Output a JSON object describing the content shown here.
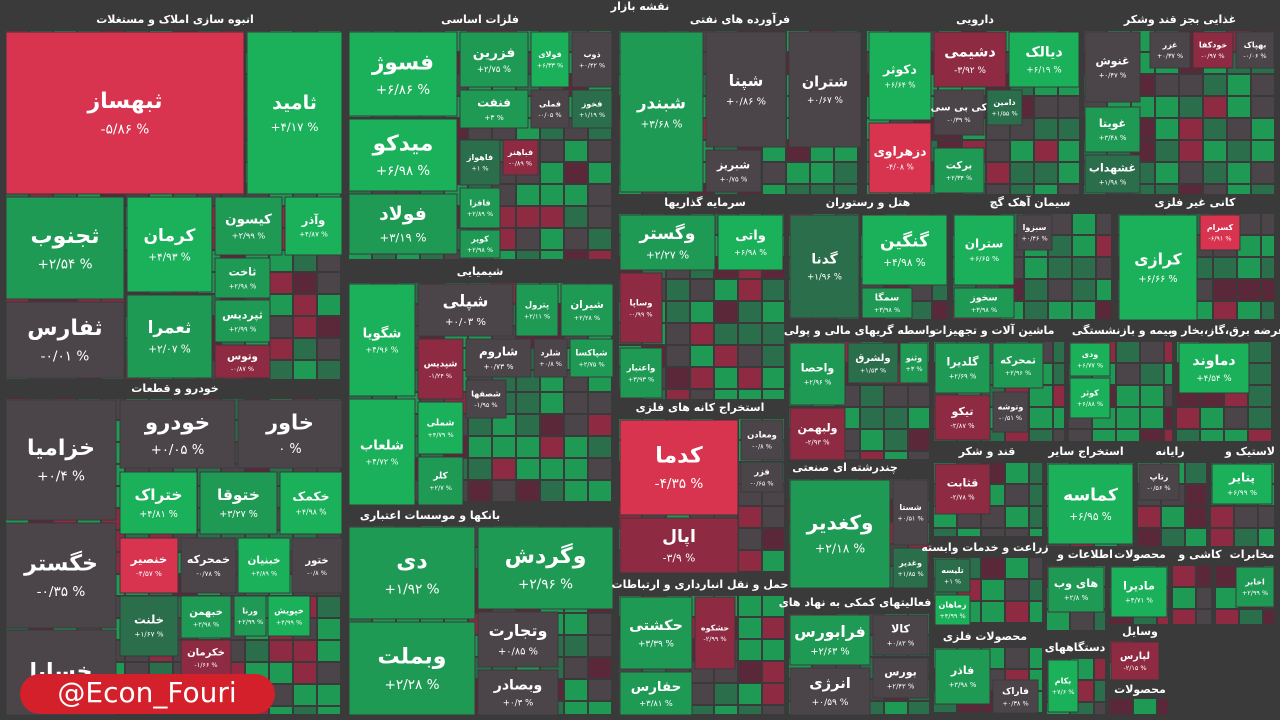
{
  "title": "نقشه بازار",
  "watermark": "@Econ_Fouri",
  "sectors": [
    {
      "name": "انبوه سازی املاک و مستغلات",
      "tiles": [
        {
          "name": "ثبهساز",
          "change": "-۵/۸۶ %",
          "color": "#d8334f"
        },
        {
          "name": "ثامید",
          "change": "+۴/۱۷ %",
          "color": "#1bb15a"
        },
        {
          "name": "ثجنوب",
          "change": "+۲/۵۴ %",
          "color": "#1f9a55"
        },
        {
          "name": "کرمان",
          "change": "+۴/۹۳ %",
          "color": "#1bb15a"
        },
        {
          "name": "کیسون",
          "change": "+۲/۹۹ %",
          "color": "#1f9a55"
        },
        {
          "name": "وآذر",
          "change": "+۴/۸۷ %",
          "color": "#1bb15a"
        },
        {
          "name": "ثاخت",
          "change": "+۲/۹۸ %",
          "color": "#1f9a55"
        },
        {
          "name": "ثفارس",
          "change": "-۰/۰۱ %",
          "color": "#4b4549"
        },
        {
          "name": "ثعمرا",
          "change": "+۲/۰۷ %",
          "color": "#1f9a55"
        },
        {
          "name": "ثپردیس",
          "change": "+۲/۹۹ %",
          "color": "#1f9a55"
        },
        {
          "name": "وتوس",
          "change": "-۰/۸۷ %",
          "color": "#8e2a42"
        }
      ]
    },
    {
      "name": "خودرو و قطعات",
      "tiles": [
        {
          "name": "خزامیا",
          "change": "+۰/۴ %",
          "color": "#4b4549"
        },
        {
          "name": "خاور",
          "change": "۰ %",
          "color": "#4b4549"
        },
        {
          "name": "خودرو",
          "change": "+۰/۰۵ %",
          "color": "#4b4549"
        },
        {
          "name": "خگستر",
          "change": "-۰/۳۵ %",
          "color": "#4b4549"
        },
        {
          "name": "خساپا",
          "color": "#4b4549"
        },
        {
          "name": "ختراک",
          "change": "+۴/۸۱ %",
          "color": "#1bb15a"
        },
        {
          "name": "ختوقا",
          "change": "+۳/۲۷ %",
          "color": "#1f9a55"
        },
        {
          "name": "خکمک",
          "change": "+۴/۹۸ %",
          "color": "#1bb15a"
        },
        {
          "name": "خنصیر",
          "change": "-۴/۵۷ %",
          "color": "#d8334f"
        },
        {
          "name": "خمحرکه",
          "change": "-۰/۷۸ %",
          "color": "#4b4549"
        },
        {
          "name": "خبنیان",
          "change": "+۴/۸۹ %",
          "color": "#1bb15a"
        },
        {
          "name": "ختور",
          "change": "-۰/۸ %",
          "color": "#4b4549"
        },
        {
          "name": "خلنت",
          "change": "+۱/۶۷ %",
          "color": "#2b6e4b"
        },
        {
          "name": "خبهمن",
          "change": "+۲/۹۸ %",
          "color": "#1f9a55"
        },
        {
          "name": "ورنا",
          "change": "+۲/۹۹ %",
          "color": "#1f9a55"
        },
        {
          "name": "خپویش",
          "change": "+۴/۹۹ %",
          "color": "#1bb15a"
        },
        {
          "name": "خکرمان",
          "change": "-۱/۶۶ %",
          "color": "#8e2a42"
        }
      ]
    },
    {
      "name": "فلزات اساسی",
      "tiles": [
        {
          "name": "فسوژ",
          "change": "+۶/۸۶ %",
          "color": "#1bb15a"
        },
        {
          "name": "میدکو",
          "change": "+۶/۹۸ %",
          "color": "#1bb15a"
        },
        {
          "name": "فولاد",
          "change": "+۳/۱۹ %",
          "color": "#1f9a55"
        },
        {
          "name": "فزرین",
          "change": "+۲/۷۵ %",
          "color": "#1f9a55"
        },
        {
          "name": "فولای",
          "change": "+۶/۳۳ %",
          "color": "#1bb15a"
        },
        {
          "name": "ذوب",
          "change": "+۰/۴۲ %",
          "color": "#4b4549"
        },
        {
          "name": "فنفت",
          "change": "+۳ %",
          "color": "#1f9a55"
        },
        {
          "name": "فملی",
          "change": "-۰/۰۵ %",
          "color": "#4b4549"
        },
        {
          "name": "فخوز",
          "change": "+۱/۱۹ %",
          "color": "#2b6e4b"
        },
        {
          "name": "فاهواز",
          "change": "+۱ %",
          "color": "#2b6e4b"
        },
        {
          "name": "فباهنر",
          "change": "-۰/۸۹ %",
          "color": "#8e2a42"
        },
        {
          "name": "فافزا",
          "change": "+۲/۸۹ %",
          "color": "#1f9a55"
        },
        {
          "name": "کویر",
          "change": "+۲/۹۸ %",
          "color": "#1f9a55"
        }
      ]
    },
    {
      "name": "شیمیایی",
      "tiles": [
        {
          "name": "شگویا",
          "change": "+۴/۹۶ %",
          "color": "#1bb15a"
        },
        {
          "name": "شلعاب",
          "change": "+۴/۷۲ %",
          "color": "#1bb15a"
        },
        {
          "name": "شپلی",
          "change": "+۰/۰۳ %",
          "color": "#4b4549"
        },
        {
          "name": "پترول",
          "change": "+۲/۱۱ %",
          "color": "#1f9a55"
        },
        {
          "name": "شیران",
          "change": "+۲/۲۸ %",
          "color": "#1f9a55"
        },
        {
          "name": "شپدیس",
          "change": "-۱/۲۴ %",
          "color": "#8e2a42"
        },
        {
          "name": "شاروم",
          "change": "+۰/۷۳ %",
          "color": "#4b4549"
        },
        {
          "name": "شلرد",
          "change": "+۰/۸ %",
          "color": "#4b4549"
        },
        {
          "name": "شپاکسا",
          "change": "+۲/۷۵ %",
          "color": "#1f9a55"
        },
        {
          "name": "شصفها",
          "change": "-۱/۹۵ %",
          "color": "#4b4549"
        },
        {
          "name": "شملی",
          "change": "+۴/۷۹ %",
          "color": "#1bb15a"
        },
        {
          "name": "کلر",
          "change": "+۲/۷ %",
          "color": "#1f9a55"
        }
      ]
    },
    {
      "name": "بانکها و موسسات اعتباری",
      "tiles": [
        {
          "name": "دی",
          "change": "+۱/۹۲ %",
          "color": "#1f9a55"
        },
        {
          "name": "وبملت",
          "change": "+۲/۲۸ %",
          "color": "#1f9a55"
        },
        {
          "name": "وگردش",
          "change": "+۲/۹۶ %",
          "color": "#1f9a55"
        },
        {
          "name": "وتجارت",
          "change": "+۰/۸۵ %",
          "color": "#4b4549"
        },
        {
          "name": "وبصادر",
          "change": "+۰/۳ %",
          "color": "#4b4549"
        }
      ]
    },
    {
      "name": "فرآورده های نفتی",
      "tiles": [
        {
          "name": "شبندر",
          "change": "+۳/۶۸ %",
          "color": "#1f9a55"
        },
        {
          "name": "شپنا",
          "change": "+۰/۸۶ %",
          "color": "#4b4549"
        },
        {
          "name": "شتران",
          "change": "+۰/۶۷ %",
          "color": "#4b4549"
        },
        {
          "name": "شبریز",
          "change": "+۰/۷۵ %",
          "color": "#4b4549"
        }
      ]
    },
    {
      "name": "دارویی",
      "tiles": [
        {
          "name": "دکوثر",
          "change": "+۶/۶۴ %",
          "color": "#1bb15a"
        },
        {
          "name": "دزهراوی",
          "change": "-۴/۰۸ %",
          "color": "#d8334f"
        },
        {
          "name": "دشیمی",
          "change": "-۳/۹۲ %",
          "color": "#8e2a42"
        },
        {
          "name": "دیالک",
          "change": "+۶/۱۹ %",
          "color": "#1bb15a"
        },
        {
          "name": "کی بی سی",
          "change": "-۰/۳۹ %",
          "color": "#4b4549"
        },
        {
          "name": "دامین",
          "change": "+۱/۵۵ %",
          "color": "#2b6e4b"
        },
        {
          "name": "برکت",
          "change": "+۲/۳۴ %",
          "color": "#1f9a55"
        }
      ]
    },
    {
      "name": "غذایی بجز قند وشکر",
      "tiles": [
        {
          "name": "بهپاک",
          "change": "-۰/۰۶ %",
          "color": "#4b4549"
        },
        {
          "name": "خودکفا",
          "change": "-۰/۹۷ %",
          "color": "#8e2a42"
        },
        {
          "name": "غزر",
          "change": "+۰/۳۷ %",
          "color": "#4b4549"
        },
        {
          "name": "غنوش",
          "change": "+۰/۴۷ %",
          "color": "#4b4549"
        },
        {
          "name": "غویتا",
          "change": "+۳/۴۸ %",
          "color": "#1f9a55"
        },
        {
          "name": "غشهداب",
          "change": "+۱/۹۸ %",
          "color": "#2b6e4b"
        }
      ]
    },
    {
      "name": "سرمایه گذاریها",
      "tiles": [
        {
          "name": "وگستر",
          "change": "+۲/۲۷ %",
          "color": "#1f9a55"
        },
        {
          "name": "واتی",
          "change": "+۶/۹۸ %",
          "color": "#1bb15a"
        },
        {
          "name": "وساپا",
          "change": "-۰/۹۹ %",
          "color": "#8e2a42"
        },
        {
          "name": "واعتبار",
          "change": "+۳/۹۳ %",
          "color": "#1f9a55"
        }
      ]
    },
    {
      "name": "هتل و رستوران",
      "tiles": [
        {
          "name": "گنگین",
          "change": "+۴/۹۸ %",
          "color": "#1bb15a"
        },
        {
          "name": "گدنا",
          "change": "+۱/۹۶ %",
          "color": "#2b6e4b"
        },
        {
          "name": "سمگا",
          "change": "+۳/۹۸ %",
          "color": "#1f9a55"
        }
      ]
    },
    {
      "name": "سیمان آهک گچ",
      "tiles": [
        {
          "name": "ستران",
          "change": "+۶/۶۵ %",
          "color": "#1bb15a"
        },
        {
          "name": "سخوز",
          "change": "+۳/۹۸ %",
          "color": "#1f9a55"
        },
        {
          "name": "سبزوا",
          "change": "+۰/۴۶ %",
          "color": "#4b4549"
        }
      ]
    },
    {
      "name": "کانی غیر فلزی",
      "tiles": [
        {
          "name": "کرازی",
          "change": "+۶/۶۶ %",
          "color": "#1bb15a"
        },
        {
          "name": "کسرام",
          "change": "-۶/۹۱ %",
          "color": "#d8334f"
        }
      ]
    },
    {
      "name": "استخراج کانه های فلزی",
      "tiles": [
        {
          "name": "کدما",
          "change": "-۴/۳۵ %",
          "color": "#d8334f"
        },
        {
          "name": "اپال",
          "change": "-۳/۹ %",
          "color": "#8e2a42"
        },
        {
          "name": "ومعادن",
          "change": "-۰/۸ %",
          "color": "#4b4549"
        },
        {
          "name": "فزر",
          "change": "-۰/۶۵ %",
          "color": "#4b4549"
        }
      ]
    },
    {
      "name": "حمل و نقل انبارداری و ارتباطات",
      "tiles": [
        {
          "name": "حکشتی",
          "change": "+۳/۳۹ %",
          "color": "#1f9a55"
        },
        {
          "name": "حشکوه",
          "change": "-۲/۹۹ %",
          "color": "#8e2a42"
        },
        {
          "name": "حفارس",
          "change": "+۳/۸۱ %",
          "color": "#1f9a55"
        }
      ]
    },
    {
      "name": "واسطه گریهای مالی و پولی",
      "tiles": [
        {
          "name": "واحصا",
          "change": "+۲/۹۶ %",
          "color": "#1f9a55"
        },
        {
          "name": "ولشرق",
          "change": "+۱/۵۳ %",
          "color": "#2b6e4b"
        },
        {
          "name": "وثنو",
          "change": "+۳ %",
          "color": "#1f9a55"
        },
        {
          "name": "ولبهمن",
          "change": "-۲/۹۳ %",
          "color": "#8e2a42"
        }
      ]
    },
    {
      "name": "چندرشته ای صنعتی",
      "tiles": [
        {
          "name": "وکغدیر",
          "change": "+۲/۱۸ %",
          "color": "#1f9a55"
        },
        {
          "name": "شستا",
          "change": "+۰/۵۱ %",
          "color": "#4b4549"
        },
        {
          "name": "وغدیر",
          "change": "+۱/۸۵ %",
          "color": "#2b6e4b"
        }
      ]
    },
    {
      "name": "فعالیتهای کمکی به نهاد های",
      "tiles": [
        {
          "name": "فرابورس",
          "change": "+۲/۶۳ %",
          "color": "#1f9a55"
        },
        {
          "name": "انرژی",
          "change": "+۰/۵۹ %",
          "color": "#4b4549"
        },
        {
          "name": "کالا",
          "change": "+۰/۸۳ %",
          "color": "#4b4549"
        },
        {
          "name": "بورس",
          "change": "+۲/۴۳ %",
          "color": "#4b4549"
        }
      ]
    },
    {
      "name": "ماشین آلات و تجهیزات",
      "tiles": [
        {
          "name": "گلدیرا",
          "change": "+۲/۶۹ %",
          "color": "#1f9a55"
        },
        {
          "name": "تمحرکه",
          "change": "+۲/۹۶ %",
          "color": "#1f9a55"
        },
        {
          "name": "تیکو",
          "change": "-۲/۸۷ %",
          "color": "#8e2a42"
        },
        {
          "name": "وتوشه",
          "change": "-۰/۵۱ %",
          "color": "#4b4549"
        }
      ]
    },
    {
      "name": "بیمه و بازنشستگی",
      "tiles": [
        {
          "name": "ودی",
          "change": "+۶/۷۷ %",
          "color": "#1bb15a"
        },
        {
          "name": "کوثر",
          "change": "+۶/۸۸ %",
          "color": "#1bb15a"
        }
      ]
    },
    {
      "name": "عرضه برق،گاز،بخار و",
      "tiles": [
        {
          "name": "دماوند",
          "change": "+۴/۵۴ %",
          "color": "#1bb15a"
        }
      ]
    },
    {
      "name": "قند و شکر",
      "tiles": [
        {
          "name": "قثابت",
          "change": "-۲/۷۸ %",
          "color": "#8e2a42"
        }
      ]
    },
    {
      "name": "استخراج سایر",
      "tiles": [
        {
          "name": "کماسه",
          "change": "+۶/۹۵ %",
          "color": "#1bb15a"
        }
      ]
    },
    {
      "name": "رایانه",
      "tiles": [
        {
          "name": "رتاپ",
          "change": "-۰/۵۶ %",
          "color": "#4b4549"
        }
      ]
    },
    {
      "name": "لاستیک و",
      "tiles": [
        {
          "name": "پتایر",
          "change": "+۶/۹۹ %",
          "color": "#1bb15a"
        }
      ]
    },
    {
      "name": "زراعت و خدمات وابسته",
      "tiles": [
        {
          "name": "تلیسه",
          "change": "+۱ %",
          "color": "#2b6e4b"
        },
        {
          "name": "زماهان",
          "change": "+۴/۹۹ %",
          "color": "#1bb15a"
        }
      ]
    },
    {
      "name": "اطلاعات و",
      "tiles": [
        {
          "name": "های وب",
          "change": "+۲/۸ %",
          "color": "#1f9a55"
        }
      ]
    },
    {
      "name": "محصولات",
      "tiles": [
        {
          "name": "مادیرا",
          "change": "+۴/۷۱ %",
          "color": "#1bb15a"
        }
      ]
    },
    {
      "name": "کاشی و",
      "tiles": []
    },
    {
      "name": "مخابرات",
      "tiles": [
        {
          "name": "اخابر",
          "change": "+۲/۹۹ %",
          "color": "#1f9a55"
        }
      ]
    },
    {
      "name": "محصولات فلزی",
      "tiles": [
        {
          "name": "فاذر",
          "change": "+۳/۹۸ %",
          "color": "#1f9a55"
        },
        {
          "name": "فاراک",
          "change": "+۰/۳۸ %",
          "color": "#4b4549"
        }
      ]
    },
    {
      "name": "دستگاههای",
      "tiles": [
        {
          "name": "بکام",
          "change": "+۷/۶ %",
          "color": "#1bb15a"
        }
      ]
    },
    {
      "name": "وسایل",
      "tiles": [
        {
          "name": "لپارس",
          "change": "-۲/۱۵ %",
          "color": "#8e2a42"
        }
      ]
    },
    {
      "name": "محصولات",
      "tiles": []
    }
  ]
}
